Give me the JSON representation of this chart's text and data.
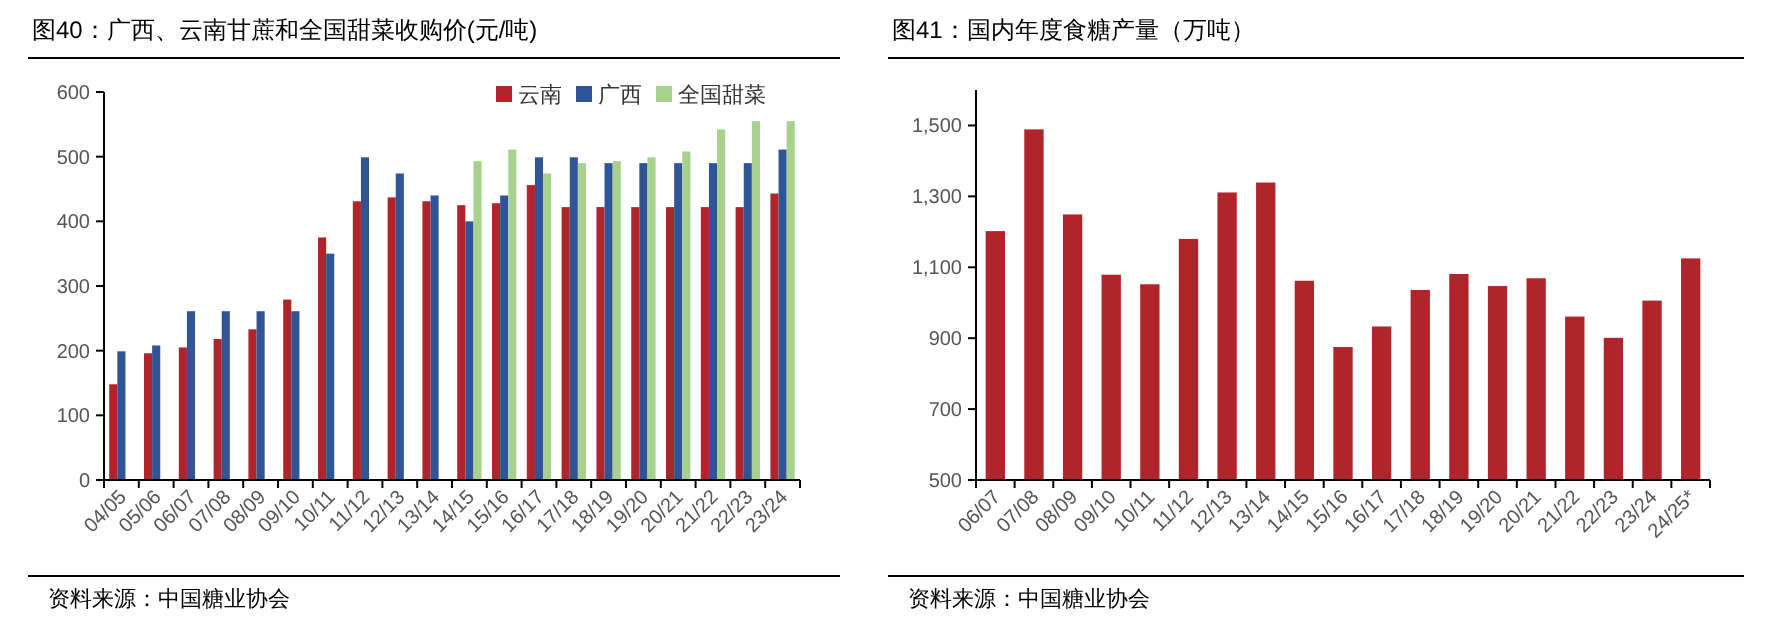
{
  "chart_data": [
    {
      "type": "bar",
      "title": "图40：广西、云南甘蔗和全国甜菜收购价(元/吨)",
      "categories": [
        "04/05",
        "05/06",
        "06/07",
        "07/08",
        "08/09",
        "09/10",
        "10/11",
        "11/12",
        "12/13",
        "13/14",
        "14/15",
        "15/16",
        "16/17",
        "17/18",
        "18/19",
        "19/20",
        "20/21",
        "21/22",
        "22/23",
        "23/24"
      ],
      "series": [
        {
          "name": "云南",
          "color": "#b0242b",
          "values": [
            148,
            196,
            205,
            218,
            233,
            279,
            375,
            431,
            437,
            431,
            425,
            428,
            456,
            422,
            422,
            422,
            422,
            422,
            422,
            443
          ]
        },
        {
          "name": "广西",
          "color": "#2f5597",
          "values": [
            199,
            208,
            261,
            261,
            261,
            261,
            350,
            499,
            474,
            440,
            400,
            440,
            499,
            499,
            490,
            490,
            490,
            490,
            490,
            511
          ]
        },
        {
          "name": "全国甜菜",
          "color": "#a9d18e",
          "values": [
            null,
            null,
            null,
            null,
            null,
            null,
            null,
            null,
            null,
            null,
            493,
            511,
            474,
            490,
            493,
            499,
            508,
            542,
            555,
            555
          ]
        }
      ],
      "ylim": [
        0,
        600
      ],
      "yticks": [
        0,
        100,
        200,
        300,
        400,
        500,
        600
      ],
      "legend": "top right",
      "grid": false,
      "annotations": [
        "资料来源：中国糖业协会"
      ]
    },
    {
      "type": "bar",
      "title": "图41：国内年度食糖产量（万吨）",
      "categories": [
        "06/07",
        "07/08",
        "08/09",
        "09/10",
        "10/11",
        "11/12",
        "12/13",
        "13/14",
        "14/15",
        "15/16",
        "16/17",
        "17/18",
        "18/19",
        "19/20",
        "20/21",
        "21/22",
        "22/23",
        "23/24",
        "24/25*"
      ],
      "series": [
        {
          "color": "#b0242b",
          "values": [
            1202,
            1489,
            1249,
            1079,
            1052,
            1180,
            1311,
            1339,
            1062,
            875,
            933,
            1036,
            1081,
            1047,
            1069,
            961,
            901,
            1006,
            1125
          ]
        }
      ],
      "ylim": [
        500,
        1600
      ],
      "yticks": [
        {
          "value": 500,
          "label": "500"
        },
        {
          "value": 700,
          "label": "700"
        },
        {
          "value": 900,
          "label": "900"
        },
        {
          "value": 1100,
          "label": "1,100"
        },
        {
          "value": 1300,
          "label": "1,300"
        },
        {
          "value": 1500,
          "label": "1,500"
        }
      ],
      "legend": false,
      "grid": false,
      "annotations": [
        "资料来源：中国糖业协会"
      ]
    }
  ]
}
